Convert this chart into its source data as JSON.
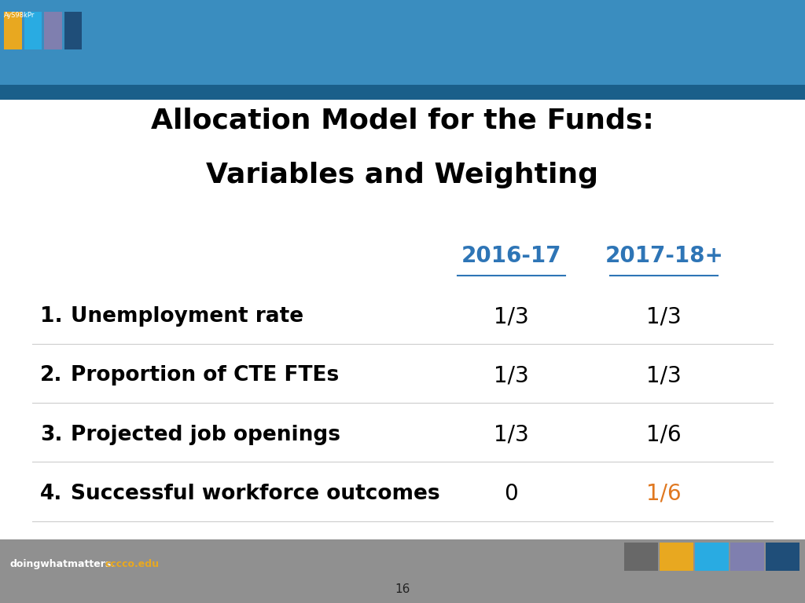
{
  "title_line1": "Allocation Model for the Funds:",
  "title_line2": "Variables and Weighting",
  "col_header_1": "2016-17",
  "col_header_2": "2017-18+",
  "rows": [
    {
      "num": "1.",
      "label": "Unemployment rate",
      "val1": "1/3",
      "val2": "1/3",
      "val2_color": "#000000"
    },
    {
      "num": "2.",
      "label": "Proportion of CTE FTEs",
      "val1": "1/3",
      "val2": "1/3",
      "val2_color": "#000000"
    },
    {
      "num": "3.",
      "label": "Projected job openings",
      "val1": "1/3",
      "val2": "1/6",
      "val2_color": "#000000"
    },
    {
      "num": "4.",
      "label": "Successful workforce outcomes",
      "val1": "0",
      "val2": "1/6",
      "val2_color": "#e07820"
    }
  ],
  "header_color": "#2e75b6",
  "title_color": "#000000",
  "body_text_color": "#000000",
  "val1_color": "#000000",
  "footer_text1": "doingwhatmatters.",
  "footer_text2": "cccco.edu",
  "footer_color1": "#ffffff",
  "footer_color2": "#e8a820",
  "page_num": "16",
  "header_bg": "#3a8dbf",
  "footer_bg": "#909090",
  "content_bg": "#ffffff",
  "color_bar": [
    "#686868",
    "#e8a820",
    "#29abe2",
    "#7f7faf",
    "#1f4e79"
  ],
  "top_bar_height": 0.165,
  "bottom_bar_height": 0.105
}
